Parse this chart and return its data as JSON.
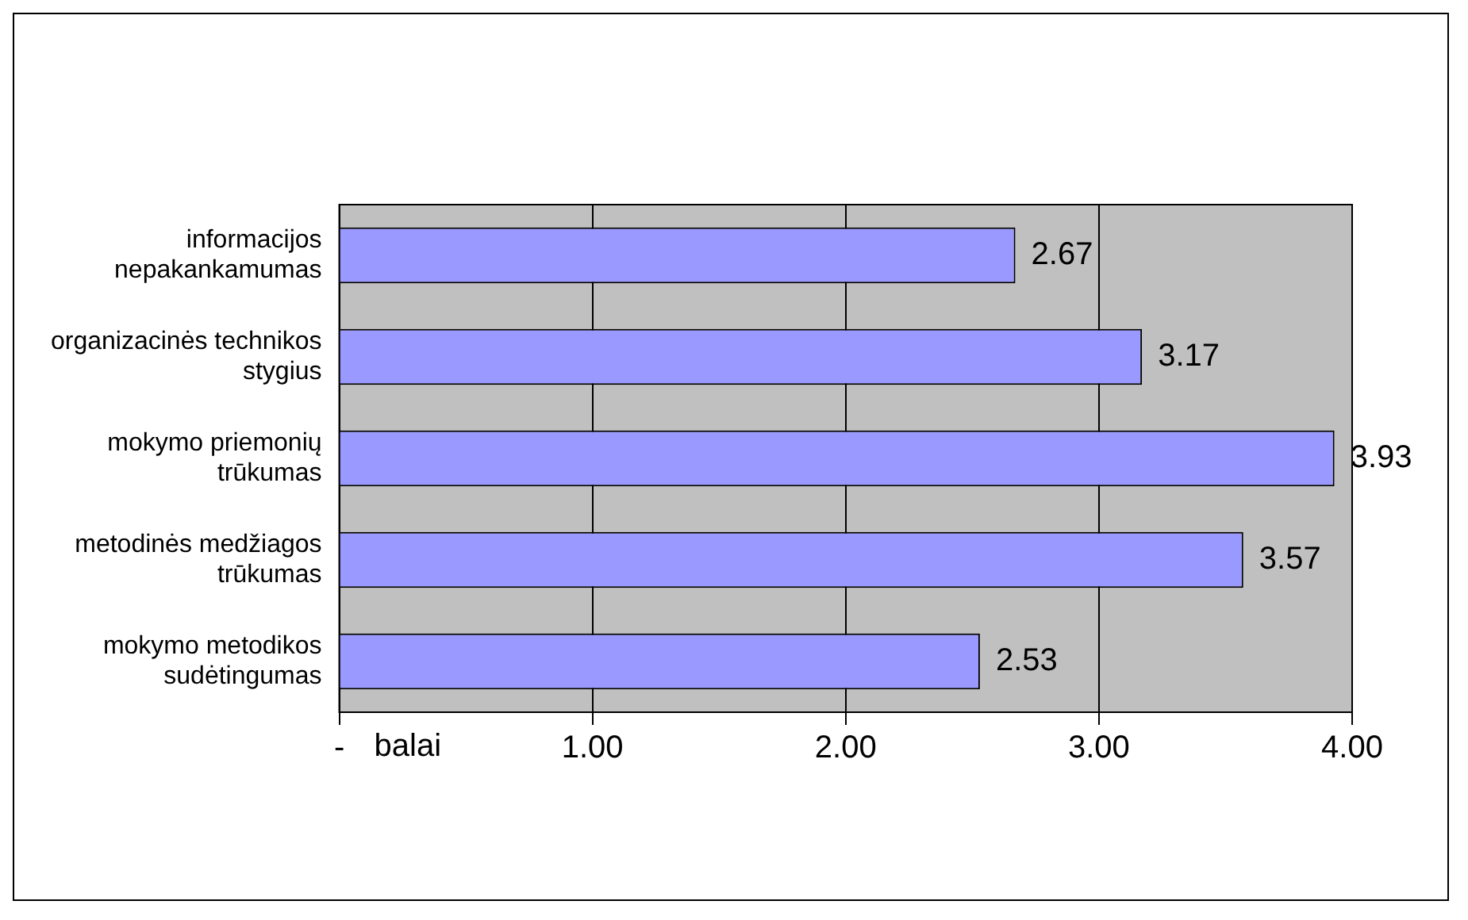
{
  "chart_data": {
    "type": "bar",
    "orientation": "horizontal",
    "xlabel": "balai",
    "categories": [
      "informacijos nepakankamumas",
      "organizacinės technikos stygius",
      "mokymo priemonių trūkumas",
      "metodinės medžiagos trūkumas",
      "mokymo metodikos sudėtingumas"
    ],
    "values": [
      2.67,
      3.17,
      3.93,
      3.57,
      2.53
    ],
    "color": "#9999ff",
    "xlim": [
      0,
      4
    ],
    "xticks": [
      {
        "value": 0,
        "label": "-"
      },
      {
        "value": 1,
        "label": "1.00"
      },
      {
        "value": 2,
        "label": "2.00"
      },
      {
        "value": 3,
        "label": "3.00"
      },
      {
        "value": 4,
        "label": "4.00"
      }
    ],
    "grid": "x",
    "legend": false,
    "data_labels": true
  }
}
